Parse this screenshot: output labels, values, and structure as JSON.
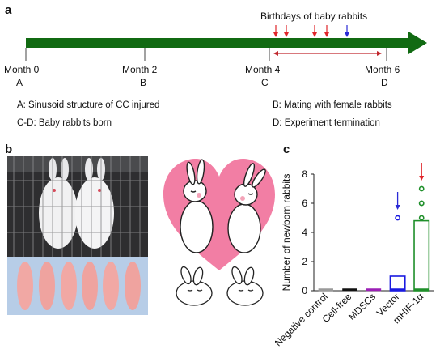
{
  "panels": {
    "a": "a",
    "b": "b",
    "c": "c"
  },
  "timeline": {
    "header": "Birthdays of baby rabbits",
    "months": [
      {
        "label": "Month 0",
        "sub": "A"
      },
      {
        "label": "Month 2",
        "sub": "B"
      },
      {
        "label": "Month 4",
        "sub": "C"
      },
      {
        "label": "Month 6",
        "sub": "D"
      }
    ],
    "colors": {
      "arrow": "#116a12",
      "red": "#e0242a",
      "blue": "#2a2ad6",
      "range": "#c0272d"
    }
  },
  "legend": {
    "A": "A: Sinusoid structure of CC injured",
    "B": "B: Mating with female rabbits",
    "CD": "C-D: Baby rabbits born",
    "D": "D: Experiment termination"
  },
  "chart_data": {
    "type": "bar",
    "ylabel": "Number of newborn rabbits",
    "xlabel": "",
    "ylim": [
      0,
      8
    ],
    "yticks": [
      "0",
      "2",
      "4",
      "6",
      "8"
    ],
    "categories": [
      "Negative control",
      "Cell-free",
      "MDSCs",
      "Vector",
      "mHIF-1α"
    ],
    "values": [
      0,
      0,
      0,
      1,
      4.8
    ],
    "colors": [
      "#9a9a9a",
      "#111111",
      "#9b1fb5",
      "#1a1ae0",
      "#1f8f2a"
    ],
    "points": [
      [
        0,
        0,
        0,
        0,
        0
      ],
      [
        0,
        0,
        0,
        0,
        0
      ],
      [
        0,
        0,
        0,
        0,
        0
      ],
      [
        0,
        0,
        0,
        0,
        5
      ],
      [
        0,
        5,
        6,
        6,
        7
      ]
    ],
    "annotations": [
      {
        "category": "Vector",
        "type": "arrow",
        "color": "#2a2ad6"
      },
      {
        "category": "mHIF-1α",
        "type": "arrow",
        "color": "#e0242a"
      }
    ]
  }
}
